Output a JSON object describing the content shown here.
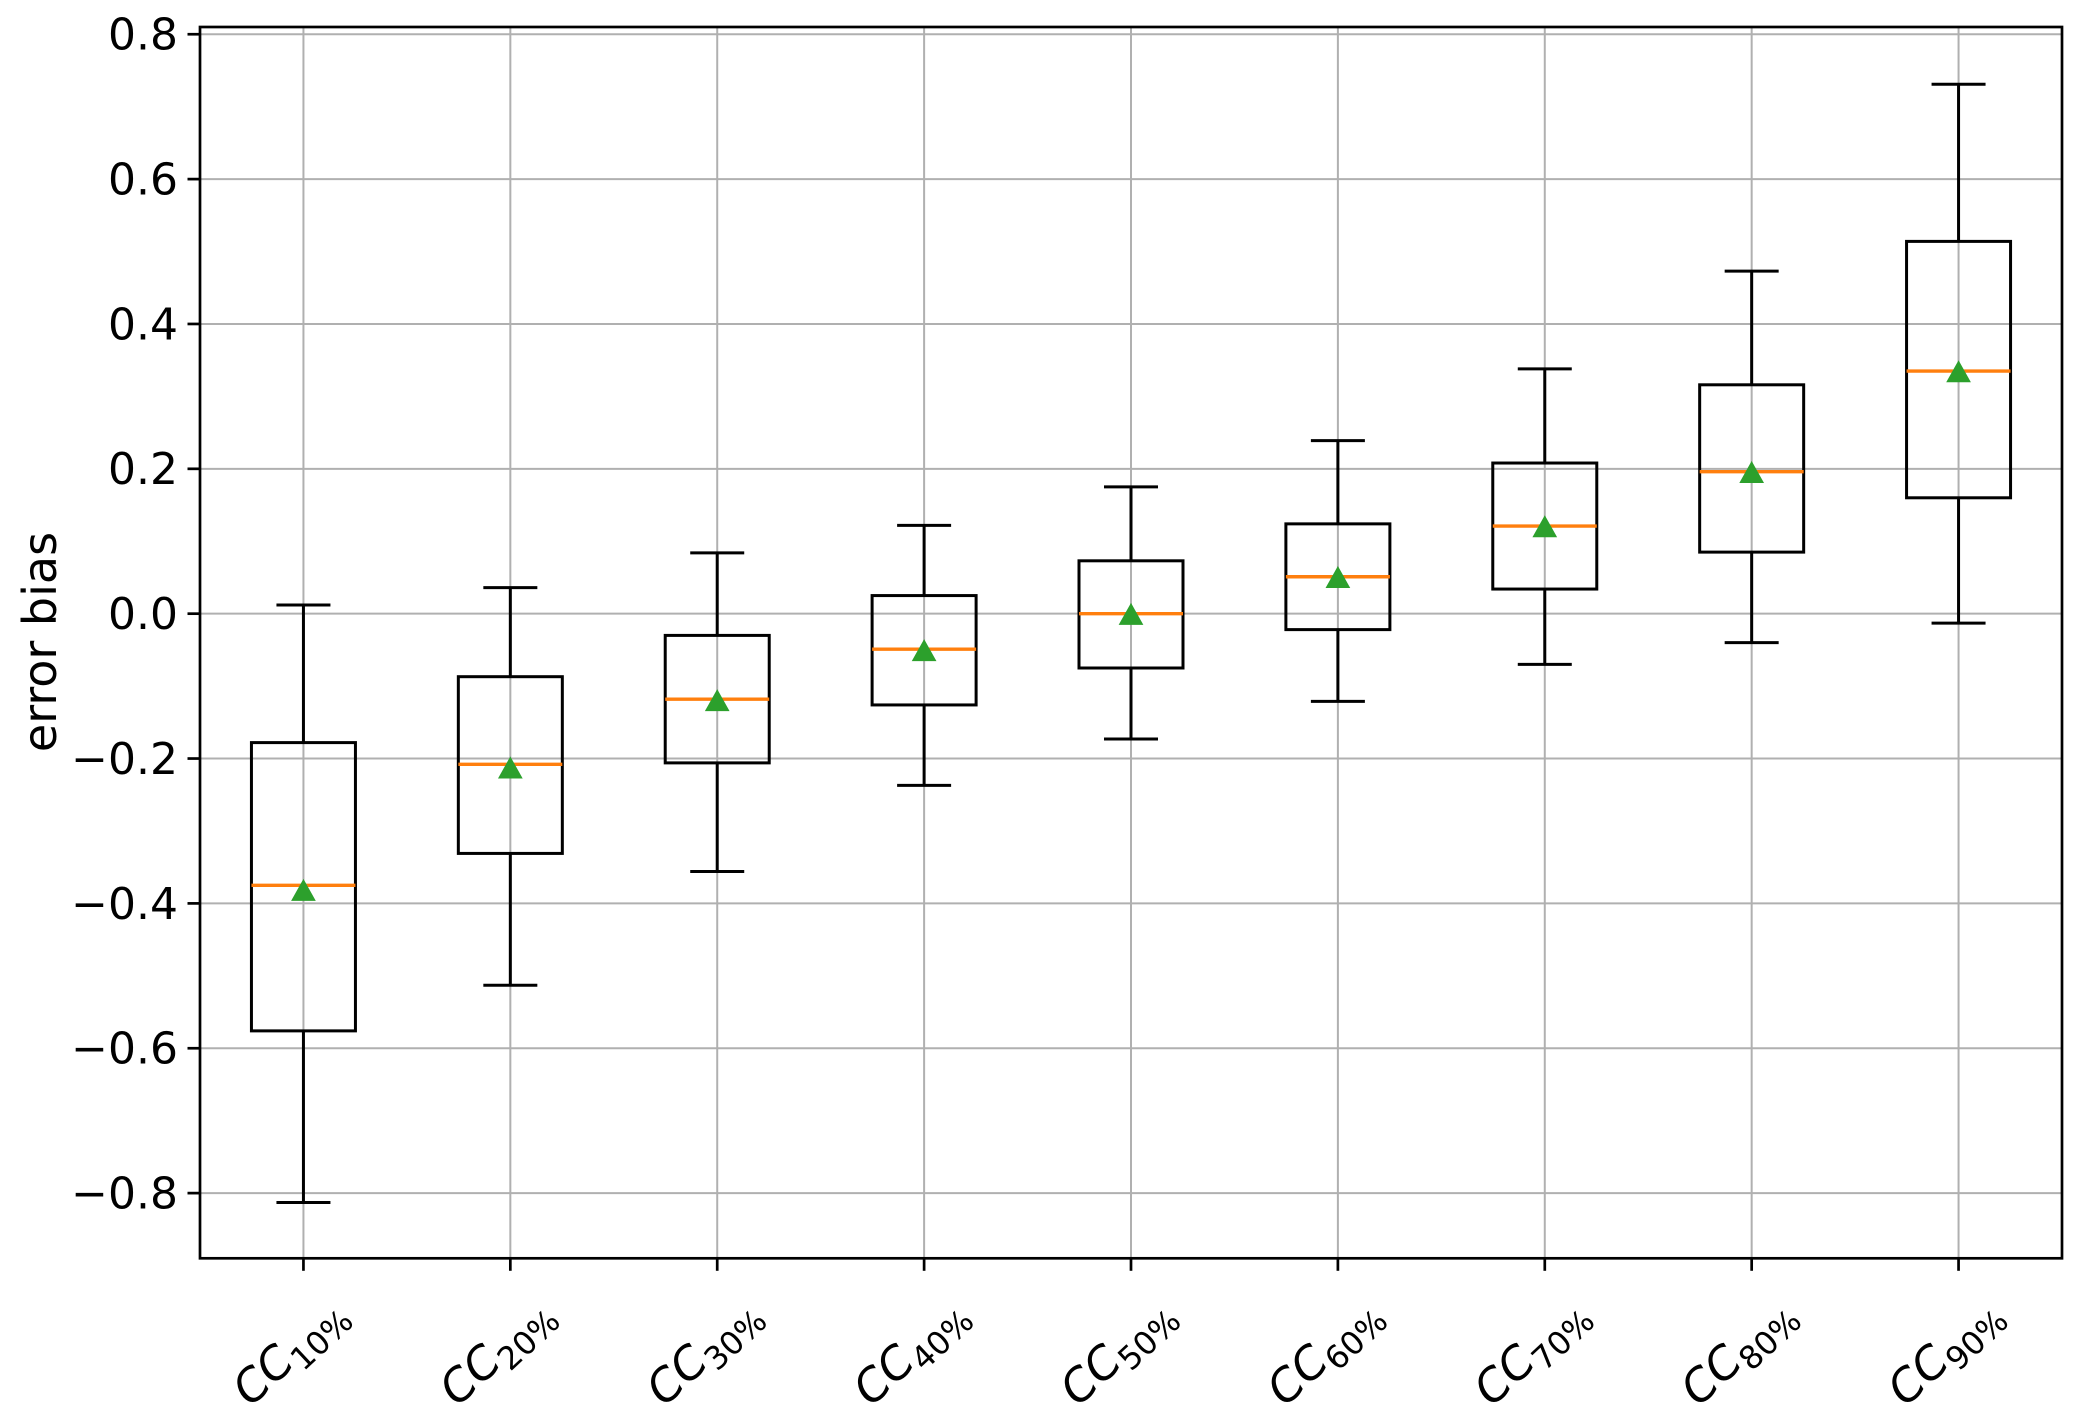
{
  "chart_data": {
    "type": "box",
    "title": "",
    "xlabel": "",
    "ylabel": "error bias",
    "grid": true,
    "legend": "none",
    "ylim": [
      -0.89,
      0.81
    ],
    "yticks": [
      0.8,
      0.6,
      0.4,
      0.2,
      0.0,
      -0.2,
      -0.4,
      -0.6,
      -0.8
    ],
    "ytick_labels": [
      "0.8",
      "0.6",
      "0.4",
      "0.2",
      "0.0",
      "−0.2",
      "−0.4",
      "−0.6",
      "−0.8"
    ],
    "categories": [
      {
        "base": "CC",
        "sub": "10%",
        "label": "CC10%"
      },
      {
        "base": "CC",
        "sub": "20%",
        "label": "CC20%"
      },
      {
        "base": "CC",
        "sub": "30%",
        "label": "CC30%"
      },
      {
        "base": "CC",
        "sub": "40%",
        "label": "CC40%"
      },
      {
        "base": "CC",
        "sub": "50%",
        "label": "CC50%"
      },
      {
        "base": "CC",
        "sub": "60%",
        "label": "CC60%"
      },
      {
        "base": "CC",
        "sub": "70%",
        "label": "CC70%"
      },
      {
        "base": "CC",
        "sub": "80%",
        "label": "CC80%"
      },
      {
        "base": "CC",
        "sub": "90%",
        "label": "CC90%"
      }
    ],
    "boxes": [
      {
        "whislo": -0.813,
        "q1": -0.576,
        "med": -0.375,
        "mean": -0.382,
        "q3": -0.178,
        "whishi": 0.012
      },
      {
        "whislo": -0.513,
        "q1": -0.331,
        "med": -0.208,
        "mean": -0.213,
        "q3": -0.087,
        "whishi": 0.036
      },
      {
        "whislo": -0.356,
        "q1": -0.206,
        "med": -0.118,
        "mean": -0.12,
        "q3": -0.03,
        "whishi": 0.084
      },
      {
        "whislo": -0.237,
        "q1": -0.126,
        "med": -0.049,
        "mean": -0.051,
        "q3": 0.025,
        "whishi": 0.122
      },
      {
        "whislo": -0.173,
        "q1": -0.075,
        "med": 0.0,
        "mean": -0.001,
        "q3": 0.073,
        "whishi": 0.175
      },
      {
        "whislo": -0.121,
        "q1": -0.022,
        "med": 0.051,
        "mean": 0.05,
        "q3": 0.124,
        "whishi": 0.239
      },
      {
        "whislo": -0.07,
        "q1": 0.034,
        "med": 0.121,
        "mean": 0.12,
        "q3": 0.208,
        "whishi": 0.338
      },
      {
        "whislo": -0.04,
        "q1": 0.085,
        "med": 0.196,
        "mean": 0.195,
        "q3": 0.316,
        "whishi": 0.473
      },
      {
        "whislo": -0.013,
        "q1": 0.16,
        "med": 0.335,
        "mean": 0.334,
        "q3": 0.514,
        "whishi": 0.731
      }
    ],
    "colors": {
      "box_line": "#000000",
      "median": "#ff7f0e",
      "mean_marker": "#2ca02c",
      "grid": "#b0b0b0",
      "spine": "#000000",
      "background": "#ffffff"
    }
  }
}
